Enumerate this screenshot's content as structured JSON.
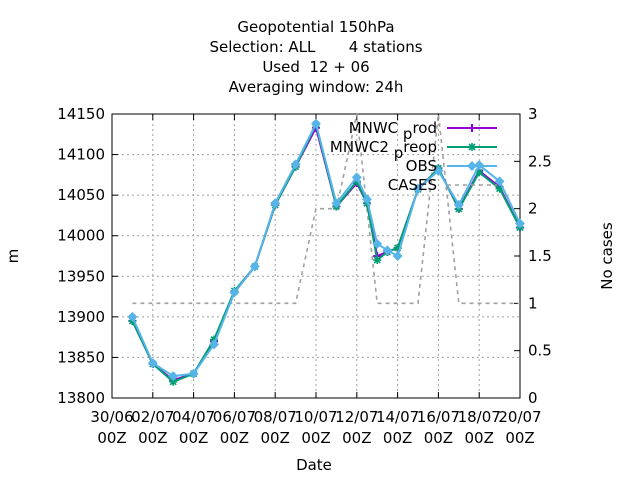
{
  "chart_data": {
    "type": "line",
    "title_lines": [
      "Geopotential 150hPa",
      "Selection: ALL       4 stations",
      "Used  12 + 06",
      "Averaging window: 24h"
    ],
    "xlabel": "Date",
    "ylabel": "m",
    "y2label": "No cases",
    "x_tick_labels": [
      [
        "30/06",
        "00Z"
      ],
      [
        "02/07",
        "00Z"
      ],
      [
        "04/07",
        "00Z"
      ],
      [
        "06/07",
        "00Z"
      ],
      [
        "08/07",
        "00Z"
      ],
      [
        "10/07",
        "00Z"
      ],
      [
        "12/07",
        "00Z"
      ],
      [
        "14/07",
        "00Z"
      ],
      [
        "16/07",
        "00Z"
      ],
      [
        "18/07",
        "00Z"
      ],
      [
        "20/07",
        "00Z"
      ]
    ],
    "xlim": [
      0,
      20
    ],
    "ylim": [
      13800,
      14150
    ],
    "y_ticks": [
      13800,
      13850,
      13900,
      13950,
      14000,
      14050,
      14100,
      14150
    ],
    "y2lim": [
      0,
      3
    ],
    "y2_ticks": [
      0,
      0.5,
      1,
      1.5,
      2,
      2.5,
      3
    ],
    "grid": true,
    "legend_position": "top-right",
    "series": [
      {
        "name": "MNWC_prod",
        "legend_main": "MNWC",
        "legend_sub": "p",
        "legend_tail": "rod",
        "color": "#9400d3",
        "marker": "plus",
        "x": [
          1,
          2,
          3,
          4,
          5,
          6,
          7,
          8,
          9,
          10,
          11,
          12,
          12.5,
          13,
          13.5,
          14,
          15,
          16,
          17,
          18,
          19,
          20
        ],
        "values": [
          13895,
          13842,
          13822,
          13830,
          13870,
          13930,
          13962,
          14038,
          14085,
          14133,
          14036,
          14065,
          14040,
          13975,
          13980,
          13985,
          14057,
          14083,
          14033,
          14080,
          14060,
          14010
        ]
      },
      {
        "name": "MNWC2_preop",
        "legend_main": "MNWC2",
        "legend_sub": "p",
        "legend_tail": "reop",
        "color": "#009e73",
        "marker": "star",
        "x": [
          1,
          2,
          3,
          4,
          5,
          6,
          7,
          8,
          9,
          10,
          11,
          12,
          12.5,
          13,
          13.5,
          14,
          15,
          16,
          17,
          18,
          19,
          20
        ],
        "values": [
          13895,
          13842,
          13820,
          13830,
          13872,
          13932,
          13962,
          14038,
          14085,
          14137,
          14036,
          14067,
          14040,
          13970,
          13980,
          13985,
          14057,
          14083,
          14033,
          14078,
          14058,
          14010
        ]
      },
      {
        "name": "OBS",
        "legend_main": "OBS",
        "legend_sub": "",
        "legend_tail": "",
        "color": "#56b4e9",
        "marker": "diamond",
        "x": [
          1,
          2,
          3,
          4,
          5,
          6,
          7,
          8,
          9,
          10,
          11,
          12,
          12.5,
          13,
          13.5,
          14,
          15,
          16,
          17,
          18,
          19,
          20
        ],
        "values": [
          13900,
          13843,
          13827,
          13830,
          13866,
          13930,
          13962,
          14040,
          14088,
          14138,
          14040,
          14072,
          14045,
          13990,
          13982,
          13975,
          14058,
          14080,
          14038,
          14087,
          14067,
          14015
        ]
      }
    ],
    "cases": {
      "name": "CASES",
      "color": "#a0a0a0",
      "axis": "right",
      "x": [
        1,
        9,
        10,
        11,
        12,
        13,
        14,
        15,
        16,
        17,
        18,
        19,
        20
      ],
      "values": [
        1,
        1,
        2,
        2,
        3,
        1,
        1,
        1,
        3,
        1,
        1,
        1,
        1
      ]
    }
  }
}
